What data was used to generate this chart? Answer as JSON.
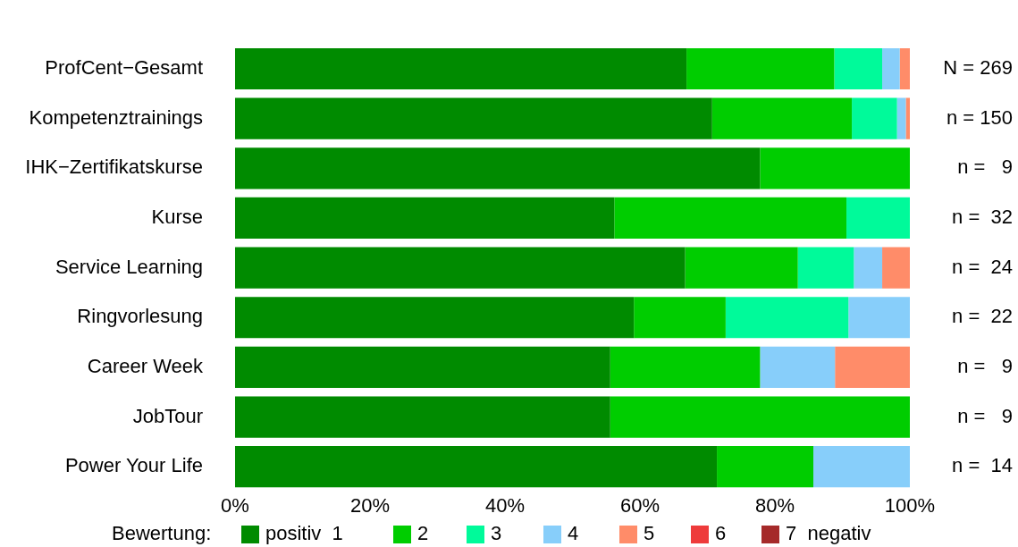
{
  "chart_data": {
    "type": "bar",
    "orientation": "horizontal",
    "stacked": true,
    "categories": [
      "ProfCent−Gesamt",
      "Kompetenztrainings",
      "IHK−Zertifikatskurse",
      "Kurse",
      "Service Learning",
      "Ringvorlesung",
      "Career Week",
      "JobTour",
      "Power Your Life"
    ],
    "series": [
      {
        "name": "positiv  1",
        "color": "#008b00",
        "values": [
          66.9,
          70.7,
          77.8,
          56.2,
          66.7,
          59.1,
          55.6,
          55.6,
          71.4
        ]
      },
      {
        "name": "2",
        "color": "#00cd00",
        "values": [
          21.9,
          20.7,
          22.2,
          34.4,
          16.7,
          13.6,
          22.2,
          44.4,
          14.3
        ]
      },
      {
        "name": "3",
        "color": "#00fa9a",
        "values": [
          7.1,
          6.7,
          0,
          9.4,
          8.3,
          18.2,
          0,
          0,
          0
        ]
      },
      {
        "name": "4",
        "color": "#87cefa",
        "values": [
          2.6,
          1.3,
          0,
          0,
          4.2,
          9.1,
          11.1,
          0,
          14.3
        ]
      },
      {
        "name": "5",
        "color": "#ff8c69",
        "values": [
          1.5,
          0.7,
          0,
          0,
          4.2,
          0,
          11.1,
          0,
          0
        ]
      },
      {
        "name": "6",
        "color": "#ee3b3b",
        "values": [
          0,
          0,
          0,
          0,
          0,
          0,
          0,
          0,
          0
        ]
      },
      {
        "name": "7  negativ",
        "color": "#a52a2a",
        "values": [
          0,
          0,
          0,
          0,
          0,
          0,
          0,
          0,
          0
        ]
      }
    ],
    "xlim": [
      0,
      100
    ],
    "xticks": [
      {
        "value": 0,
        "label": "0%"
      },
      {
        "value": 20,
        "label": "20%"
      },
      {
        "value": 40,
        "label": "40%"
      },
      {
        "value": 60,
        "label": "60%"
      },
      {
        "value": 80,
        "label": "80%"
      },
      {
        "value": 100,
        "label": "100%"
      }
    ],
    "grid": false,
    "legend": "bottom",
    "legend_title": "Bewertung:",
    "annotations": [
      "N = 269",
      "n = 150",
      "n =   9",
      "n =  32",
      "n =  24",
      "n =  22",
      "n =   9",
      "n =   9",
      "n =  14"
    ]
  }
}
